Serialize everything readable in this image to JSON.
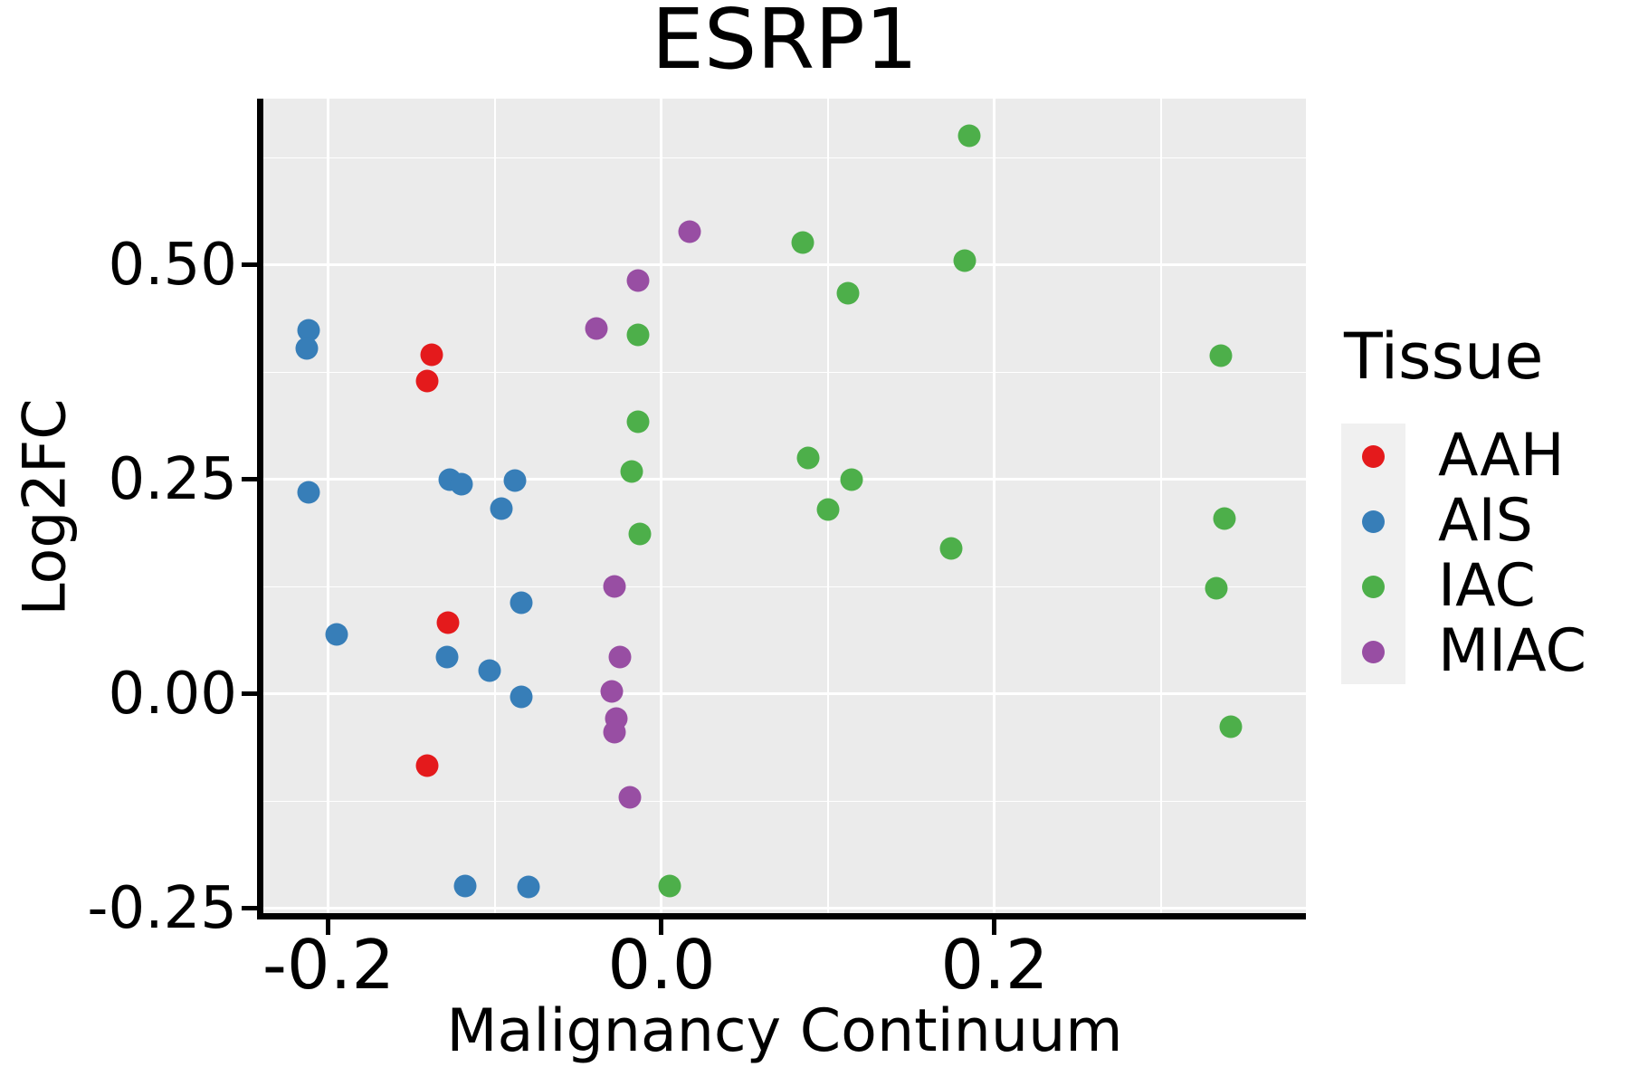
{
  "chart_data": {
    "type": "scatter",
    "title": "ESRP1",
    "xlabel": "Malignancy Continuum",
    "ylabel": "Log2FC",
    "xlim": [
      -0.23913,
      0.38696
    ],
    "ylim": [
      -0.25844,
      0.69409
    ],
    "grid": true,
    "legend_position": "right",
    "x_ticks": {
      "values": [
        -0.2,
        0.0,
        0.2
      ],
      "labels": [
        "-0.2",
        "0.0",
        "0.2"
      ],
      "minor": [
        -0.1,
        0.1,
        0.3
      ]
    },
    "y_ticks": {
      "values": [
        0.5,
        0.25,
        0.0,
        -0.25
      ],
      "labels": [
        "0.50",
        "0.25",
        "0.00",
        "-0.25"
      ],
      "minor": [
        0.625,
        0.375,
        0.125,
        -0.125
      ]
    },
    "series": [
      {
        "name": "AAH",
        "color": "#E41A1C",
        "points": [
          [
            -0.138,
            0.396
          ],
          [
            -0.141,
            0.365
          ],
          [
            -0.128,
            0.083
          ],
          [
            -0.141,
            -0.083
          ]
        ]
      },
      {
        "name": "AIS",
        "color": "#377EB8",
        "points": [
          [
            -0.212,
            0.424
          ],
          [
            -0.213,
            0.403
          ],
          [
            -0.212,
            0.235
          ],
          [
            -0.195,
            0.07
          ],
          [
            -0.127,
            0.25
          ],
          [
            -0.12,
            0.245
          ],
          [
            -0.088,
            0.249
          ],
          [
            -0.096,
            0.216
          ],
          [
            -0.084,
            0.107
          ],
          [
            -0.129,
            0.043
          ],
          [
            -0.103,
            0.027
          ],
          [
            -0.084,
            -0.003
          ],
          [
            -0.118,
            -0.224
          ],
          [
            -0.08,
            -0.225
          ]
        ]
      },
      {
        "name": "IAC",
        "color": "#4DAF4A",
        "points": [
          [
            0.185,
            0.651
          ],
          [
            0.085,
            0.526
          ],
          [
            0.182,
            0.505
          ],
          [
            0.112,
            0.467
          ],
          [
            -0.014,
            0.419
          ],
          [
            -0.014,
            0.318
          ],
          [
            0.088,
            0.275
          ],
          [
            -0.018,
            0.26
          ],
          [
            0.114,
            0.25
          ],
          [
            0.1,
            0.215
          ],
          [
            -0.013,
            0.187
          ],
          [
            0.174,
            0.17
          ],
          [
            0.336,
            0.394
          ],
          [
            0.338,
            0.205
          ],
          [
            0.333,
            0.123
          ],
          [
            0.342,
            -0.038
          ],
          [
            0.005,
            -0.224
          ]
        ]
      },
      {
        "name": "MIAC",
        "color": "#984EA3",
        "points": [
          [
            0.017,
            0.539
          ],
          [
            -0.014,
            0.482
          ],
          [
            -0.039,
            0.426
          ],
          [
            -0.028,
            0.126
          ],
          [
            -0.025,
            0.043
          ],
          [
            -0.03,
            0.003
          ],
          [
            -0.027,
            -0.029
          ],
          [
            -0.028,
            -0.044
          ],
          [
            -0.019,
            -0.12
          ]
        ]
      }
    ]
  },
  "legend": {
    "title": "Tissue",
    "items": [
      {
        "label": "AAH",
        "color": "#E41A1C"
      },
      {
        "label": "AIS",
        "color": "#377EB8"
      },
      {
        "label": "IAC",
        "color": "#4DAF4A"
      },
      {
        "label": "MIAC",
        "color": "#984EA3"
      }
    ]
  },
  "colors": {
    "panel_bg": "#EBEBEB",
    "grid": "#FFFFFF",
    "axis": "#000000",
    "legend_key_bg": "#F0F0F0"
  }
}
